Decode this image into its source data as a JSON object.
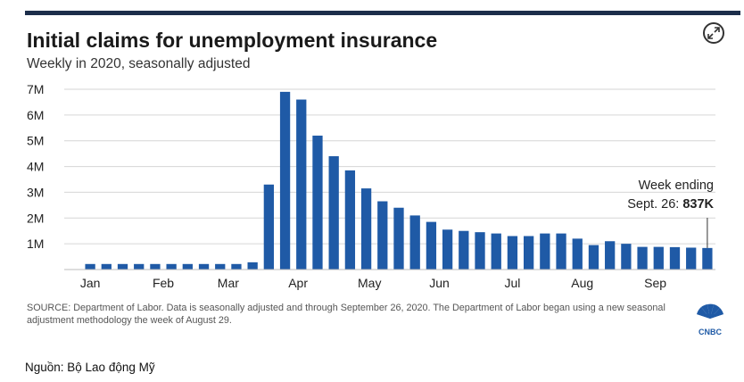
{
  "chart_data": {
    "type": "bar",
    "title": "Initial claims for unemployment insurance",
    "subtitle": "Weekly in 2020, seasonally adjusted",
    "y_tick_labels": [
      "1M",
      "2M",
      "3M",
      "4M",
      "5M",
      "6M",
      "7M"
    ],
    "y_tick_values": [
      1000000,
      2000000,
      3000000,
      4000000,
      5000000,
      6000000,
      7000000
    ],
    "ylim": [
      0,
      7000000
    ],
    "x_tick_labels": [
      "Jan",
      "Feb",
      "Mar",
      "Apr",
      "May",
      "Jun",
      "Jul",
      "Aug",
      "Sep"
    ],
    "x_tick_weeks": [
      0,
      4.5,
      8.5,
      12.8,
      17.2,
      21.5,
      26,
      30.3,
      34.8
    ],
    "values": [
      215000,
      215000,
      215000,
      215000,
      215000,
      215000,
      215000,
      215000,
      215000,
      215000,
      282000,
      3300000,
      6900000,
      6600000,
      5200000,
      4400000,
      3850000,
      3150000,
      2650000,
      2400000,
      2100000,
      1850000,
      1550000,
      1500000,
      1450000,
      1400000,
      1300000,
      1300000,
      1400000,
      1400000,
      1200000,
      950000,
      1100000,
      1000000,
      880000,
      880000,
      870000,
      850000,
      837000
    ],
    "bar_color": "#1f5aa6",
    "gridlines": true,
    "annotation": {
      "line1": "Week ending",
      "line2": "Sept. 26: ",
      "value": "837K"
    }
  },
  "source_note": "SOURCE: Department of Labor. Data is seasonally adjusted and through September 26, 2020. The Department of Labor began using a new seasonal adjustment methodology the week of August 29.",
  "logo_text": "CNBC",
  "caption": "Nguồn: Bộ Lao động Mỹ",
  "icons": {
    "expand": "expand-icon",
    "logo": "cnbc-peacock-logo"
  }
}
